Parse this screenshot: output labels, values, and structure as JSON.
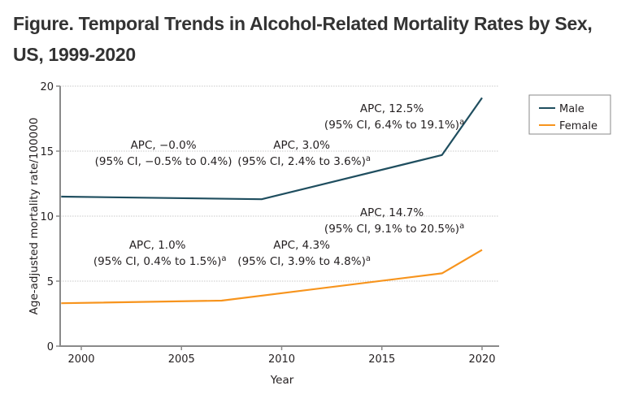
{
  "figure": {
    "title": "Figure.  Temporal Trends in Alcohol-Related Mortality Rates by Sex, US, 1999-2020"
  },
  "chart_data": {
    "type": "line",
    "title": "Temporal Trends in Alcohol-Related Mortality Rates by Sex, US, 1999-2020",
    "xlabel": "Year",
    "ylabel": "Age-adjusted mortality rate/100000",
    "xlim": [
      1999,
      2021
    ],
    "ylim": [
      0,
      20
    ],
    "xticks": [
      2000,
      2005,
      2010,
      2015,
      2020
    ],
    "yticks": [
      0,
      5,
      10,
      15,
      20
    ],
    "grid": "horizontal-dotted",
    "legend": {
      "placement": "top-right",
      "entries": [
        "Male",
        "Female"
      ]
    },
    "colors": {
      "Male": "#1f4e5f",
      "Female": "#f7941d"
    },
    "series": [
      {
        "name": "Male",
        "x": [
          1999,
          2009,
          2018,
          2020
        ],
        "y": [
          11.5,
          11.3,
          14.7,
          19.1
        ]
      },
      {
        "name": "Female",
        "x": [
          1999,
          2007,
          2018,
          2020
        ],
        "y": [
          3.3,
          3.5,
          5.6,
          7.4
        ]
      }
    ],
    "annotations": [
      {
        "series": "Male",
        "line1": "APC, −0.0%",
        "line2": "(95% CI, −0.5% to 0.4%)",
        "sup": "",
        "at": [
          2004.1,
          15.2
        ]
      },
      {
        "series": "Male",
        "line1": "APC, 3.0%",
        "line2": "(95% CI, 2.4% to 3.6%)",
        "sup": "a",
        "at": [
          2011.0,
          15.2
        ]
      },
      {
        "series": "Male",
        "line1": "APC, 12.5%",
        "line2": "(95% CI, 6.4% to 19.1%)",
        "sup": "a",
        "at": [
          2015.5,
          18.0
        ]
      },
      {
        "series": "Female",
        "line1": "APC, 1.0%",
        "line2": "(95% CI, 0.4% to 1.5%)",
        "sup": "a",
        "at": [
          2003.8,
          7.5
        ]
      },
      {
        "series": "Female",
        "line1": "APC, 4.3%",
        "line2": "(95% CI, 3.9% to 4.8%)",
        "sup": "a",
        "at": [
          2011.0,
          7.5
        ]
      },
      {
        "series": "Female",
        "line1": "APC, 14.7%",
        "line2": "(95% CI, 9.1% to 20.5%)",
        "sup": "a",
        "at": [
          2015.5,
          10.0
        ]
      }
    ]
  }
}
